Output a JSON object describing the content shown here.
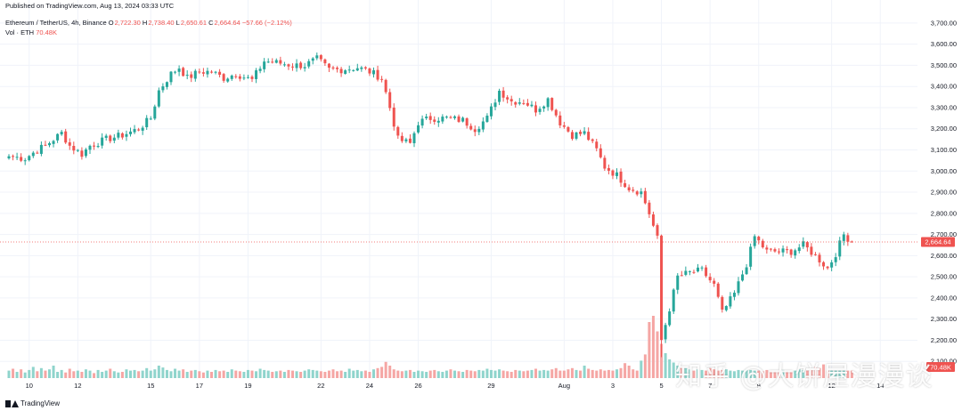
{
  "published": "Published on TradingView.com, Aug 13, 2024 03:33 UTC",
  "symbol_line": "Ethereum / TetherUS, 4h, Binance",
  "ohlc": {
    "o_label": "O",
    "o": "2,722.30",
    "h_label": "H",
    "h": "2,738.40",
    "l_label": "L",
    "l": "2,650.61",
    "c_label": "C",
    "c": "2,664.64",
    "change": "−57.66 (−2.12%)"
  },
  "volume": {
    "label": "Vol · ETH",
    "value": "70.48K",
    "tag": "70.48K"
  },
  "brand": "TradingView",
  "watermark": "知乎 @大饼屋漫漫谈",
  "colors": {
    "up": "#26a69a",
    "down": "#ef5350",
    "up_volume": "#8fd4cc",
    "down_volume": "#f5a6a4",
    "grid": "#f0f3fa",
    "price_line": "#ef5350"
  },
  "chart_data": {
    "type": "candlestick",
    "interval": "4h",
    "ylim": [
      2000,
      3750
    ],
    "y_ticks": [
      "2,100.00",
      "2,200.00",
      "2,300.00",
      "2,400.00",
      "2,500.00",
      "2,600.00",
      "2,700.00",
      "2,800.00",
      "2,900.00",
      "3,000.00",
      "3,100.00",
      "3,200.00",
      "3,300.00",
      "3,400.00",
      "3,500.00",
      "3,600.00",
      "3,700.00"
    ],
    "y_tick_values": [
      2100,
      2200,
      2300,
      2400,
      2500,
      2600,
      2700,
      2800,
      2900,
      3000,
      3100,
      3200,
      3300,
      3400,
      3500,
      3600,
      3700
    ],
    "x_ticks": [
      {
        "label": "10",
        "bar": 5
      },
      {
        "label": "12",
        "bar": 17
      },
      {
        "label": "15",
        "bar": 35
      },
      {
        "label": "17",
        "bar": 47
      },
      {
        "label": "19",
        "bar": 59
      },
      {
        "label": "22",
        "bar": 77
      },
      {
        "label": "24",
        "bar": 89
      },
      {
        "label": "26",
        "bar": 101
      },
      {
        "label": "29",
        "bar": 119
      },
      {
        "label": "Aug",
        "bar": 137
      },
      {
        "label": "3",
        "bar": 149
      },
      {
        "label": "5",
        "bar": 161
      },
      {
        "label": "7",
        "bar": 173
      },
      {
        "label": "9",
        "bar": 185
      },
      {
        "label": "12",
        "bar": 203
      },
      {
        "label": "14",
        "bar": 215
      }
    ],
    "last_price": 2664.64,
    "last_price_label": "2,664.64",
    "waypoints": [
      [
        0,
        3070
      ],
      [
        4,
        3060
      ],
      [
        7,
        3100
      ],
      [
        9,
        3120
      ],
      [
        13,
        3180
      ],
      [
        15,
        3120
      ],
      [
        18,
        3080
      ],
      [
        20,
        3120
      ],
      [
        24,
        3150
      ],
      [
        28,
        3170
      ],
      [
        32,
        3200
      ],
      [
        35,
        3250
      ],
      [
        37,
        3380
      ],
      [
        40,
        3460
      ],
      [
        42,
        3490
      ],
      [
        44,
        3440
      ],
      [
        47,
        3470
      ],
      [
        50,
        3470
      ],
      [
        53,
        3440
      ],
      [
        56,
        3460
      ],
      [
        60,
        3430
      ],
      [
        63,
        3520
      ],
      [
        67,
        3510
      ],
      [
        70,
        3500
      ],
      [
        73,
        3500
      ],
      [
        76,
        3530
      ],
      [
        79,
        3480
      ],
      [
        82,
        3480
      ],
      [
        86,
        3490
      ],
      [
        89,
        3470
      ],
      [
        92,
        3440
      ],
      [
        94,
        3300
      ],
      [
        96,
        3150
      ],
      [
        99,
        3130
      ],
      [
        101,
        3230
      ],
      [
        104,
        3250
      ],
      [
        108,
        3250
      ],
      [
        112,
        3240
      ],
      [
        115,
        3200
      ],
      [
        118,
        3250
      ],
      [
        121,
        3380
      ],
      [
        124,
        3330
      ],
      [
        127,
        3330
      ],
      [
        130,
        3290
      ],
      [
        133,
        3340
      ],
      [
        136,
        3230
      ],
      [
        139,
        3170
      ],
      [
        142,
        3180
      ],
      [
        145,
        3100
      ],
      [
        147,
        3020
      ],
      [
        150,
        2980
      ],
      [
        153,
        2920
      ],
      [
        156,
        2900
      ],
      [
        158,
        2800
      ],
      [
        160,
        2680
      ],
      [
        161,
        2200
      ],
      [
        163,
        2350
      ],
      [
        165,
        2500
      ],
      [
        168,
        2520
      ],
      [
        171,
        2530
      ],
      [
        174,
        2460
      ],
      [
        176,
        2330
      ],
      [
        179,
        2420
      ],
      [
        182,
        2560
      ],
      [
        184,
        2690
      ],
      [
        187,
        2620
      ],
      [
        190,
        2620
      ],
      [
        193,
        2620
      ],
      [
        196,
        2650
      ],
      [
        199,
        2600
      ],
      [
        202,
        2540
      ],
      [
        204,
        2610
      ],
      [
        206,
        2700
      ],
      [
        208,
        2664.64
      ]
    ],
    "volumes": [
      0.12,
      0.15,
      0.1,
      0.14,
      0.09,
      0.13,
      0.18,
      0.11,
      0.16,
      0.12,
      0.14,
      0.2,
      0.1,
      0.13,
      0.09,
      0.15,
      0.11,
      0.12,
      0.1,
      0.14,
      0.12,
      0.08,
      0.13,
      0.1,
      0.12,
      0.15,
      0.11,
      0.09,
      0.1,
      0.14,
      0.12,
      0.13,
      0.11,
      0.12,
      0.16,
      0.12,
      0.14,
      0.2,
      0.17,
      0.13,
      0.11,
      0.15,
      0.12,
      0.14,
      0.1,
      0.12,
      0.13,
      0.11,
      0.09,
      0.12,
      0.1,
      0.13,
      0.11,
      0.12,
      0.1,
      0.14,
      0.12,
      0.11,
      0.1,
      0.13,
      0.12,
      0.11,
      0.15,
      0.13,
      0.12,
      0.1,
      0.11,
      0.12,
      0.1,
      0.13,
      0.12,
      0.11,
      0.1,
      0.12,
      0.14,
      0.13,
      0.12,
      0.11,
      0.1,
      0.12,
      0.14,
      0.11,
      0.12,
      0.1,
      0.15,
      0.12,
      0.13,
      0.11,
      0.12,
      0.1,
      0.14,
      0.16,
      0.18,
      0.26,
      0.2,
      0.14,
      0.12,
      0.11,
      0.12,
      0.13,
      0.1,
      0.12,
      0.11,
      0.1,
      0.12,
      0.13,
      0.11,
      0.1,
      0.12,
      0.14,
      0.12,
      0.11,
      0.1,
      0.13,
      0.12,
      0.11,
      0.13,
      0.12,
      0.15,
      0.13,
      0.12,
      0.14,
      0.12,
      0.11,
      0.1,
      0.13,
      0.12,
      0.11,
      0.12,
      0.13,
      0.15,
      0.12,
      0.13,
      0.12,
      0.14,
      0.16,
      0.12,
      0.12,
      0.14,
      0.16,
      0.13,
      0.12,
      0.2,
      0.15,
      0.13,
      0.12,
      0.14,
      0.12,
      0.13,
      0.12,
      0.14,
      0.16,
      0.24,
      0.2,
      0.14,
      0.12,
      0.28,
      0.38,
      0.9,
      1.0,
      0.75,
      0.55,
      0.4,
      0.3,
      0.25,
      0.2,
      0.18,
      0.16,
      0.14,
      0.12,
      0.14,
      0.13,
      0.12,
      0.16,
      0.14,
      0.12,
      0.13,
      0.14,
      0.12,
      0.11,
      0.13,
      0.12,
      0.14,
      0.13,
      0.12,
      0.12,
      0.11,
      0.13,
      0.12,
      0.11,
      0.12,
      0.13,
      0.12,
      0.11,
      0.12,
      0.14,
      0.13,
      0.12,
      0.14,
      0.18,
      0.16,
      0.22
    ]
  }
}
